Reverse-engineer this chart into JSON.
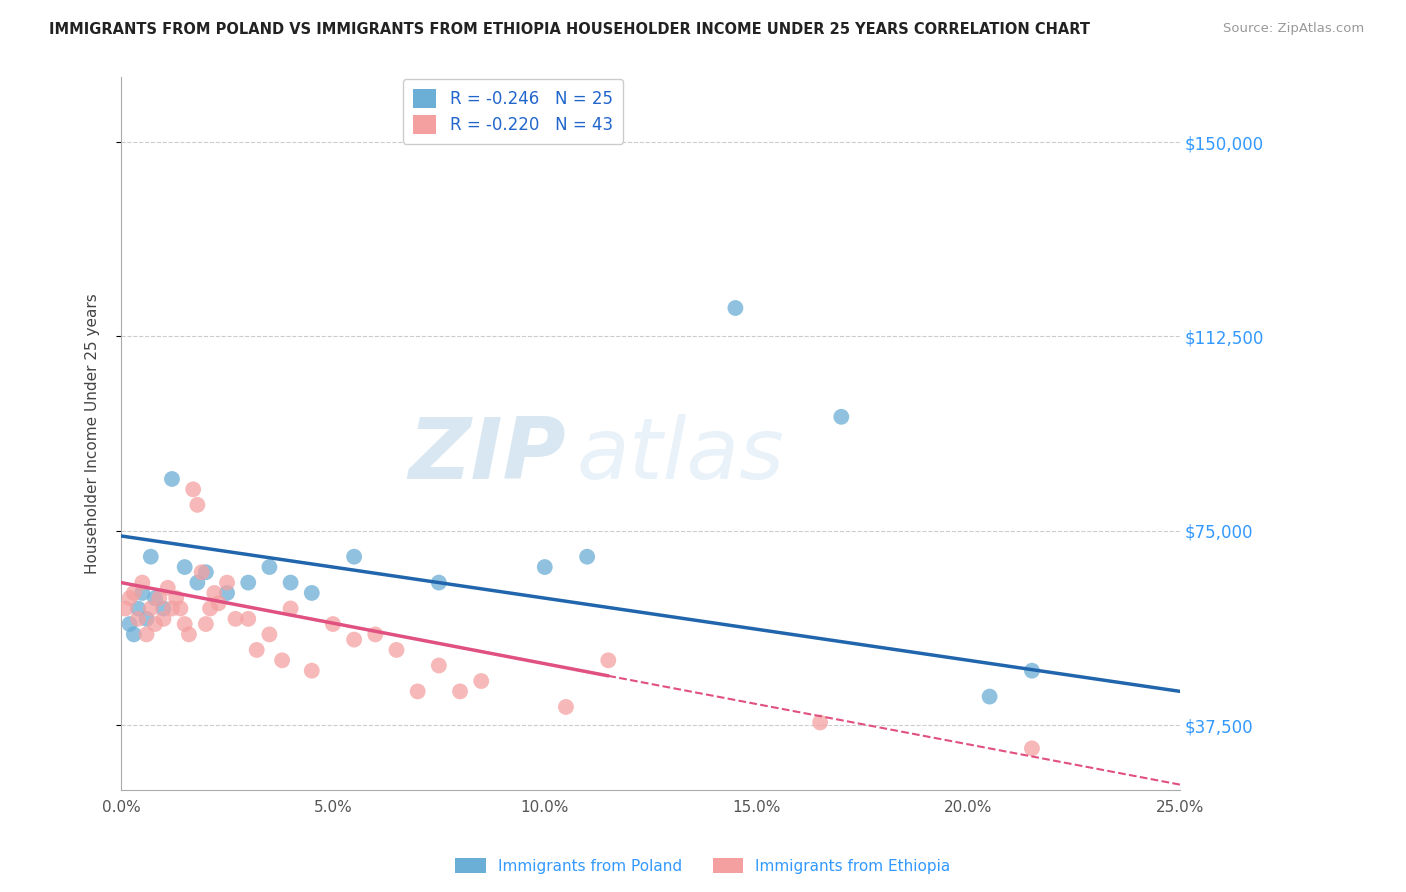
{
  "title": "IMMIGRANTS FROM POLAND VS IMMIGRANTS FROM ETHIOPIA HOUSEHOLDER INCOME UNDER 25 YEARS CORRELATION CHART",
  "source": "Source: ZipAtlas.com",
  "ylabel": "Householder Income Under 25 years",
  "xlim": [
    0.0,
    25.0
  ],
  "ylim": [
    25000,
    162500
  ],
  "yticks": [
    37500,
    75000,
    112500,
    150000
  ],
  "ytick_labels": [
    "$37,500",
    "$75,000",
    "$112,500",
    "$150,000"
  ],
  "xticks": [
    0.0,
    5.0,
    10.0,
    15.0,
    20.0,
    25.0
  ],
  "xtick_labels": [
    "0.0%",
    "5.0%",
    "10.0%",
    "15.0%",
    "20.0%",
    "25.0%"
  ],
  "legend_labels": [
    "R = -0.246   N = 25",
    "R = -0.220   N = 43"
  ],
  "legend_bottom_labels": [
    "Immigrants from Poland",
    "Immigrants from Ethiopia"
  ],
  "poland_color": "#6baed6",
  "ethiopia_color": "#f4a0a0",
  "poland_line_color": "#2166ac",
  "ethiopia_line_color": "#e05080",
  "watermark_zip": "ZIP",
  "watermark_atlas": "atlas",
  "poland_x": [
    0.2,
    0.3,
    0.4,
    0.5,
    0.6,
    0.7,
    0.8,
    1.0,
    1.2,
    1.5,
    1.8,
    2.0,
    2.5,
    3.0,
    3.5,
    4.0,
    4.5,
    5.5,
    7.5,
    10.0,
    11.0,
    14.5,
    17.0,
    20.5,
    21.5
  ],
  "poland_y": [
    57000,
    55000,
    60000,
    63000,
    58000,
    70000,
    62000,
    60000,
    85000,
    68000,
    65000,
    67000,
    63000,
    65000,
    68000,
    65000,
    63000,
    70000,
    65000,
    68000,
    70000,
    118000,
    97000,
    43000,
    48000
  ],
  "ethiopia_x": [
    0.1,
    0.2,
    0.3,
    0.4,
    0.5,
    0.6,
    0.7,
    0.8,
    0.9,
    1.0,
    1.1,
    1.2,
    1.3,
    1.4,
    1.5,
    1.6,
    1.7,
    1.8,
    1.9,
    2.0,
    2.1,
    2.2,
    2.3,
    2.5,
    2.7,
    3.0,
    3.2,
    3.5,
    3.8,
    4.0,
    4.5,
    5.0,
    5.5,
    6.0,
    6.5,
    7.0,
    7.5,
    8.0,
    8.5,
    10.5,
    11.5,
    16.5,
    21.5
  ],
  "ethiopia_y": [
    60000,
    62000,
    63000,
    58000,
    65000,
    55000,
    60000,
    57000,
    62000,
    58000,
    64000,
    60000,
    62000,
    60000,
    57000,
    55000,
    83000,
    80000,
    67000,
    57000,
    60000,
    63000,
    61000,
    65000,
    58000,
    58000,
    52000,
    55000,
    50000,
    60000,
    48000,
    57000,
    54000,
    55000,
    52000,
    44000,
    49000,
    44000,
    46000,
    41000,
    50000,
    38000,
    33000
  ],
  "poland_line_x0": 0.0,
  "poland_line_y0": 74000,
  "poland_line_x1": 25.0,
  "poland_line_y1": 44000,
  "ethiopia_solid_x0": 0.0,
  "ethiopia_solid_y0": 65000,
  "ethiopia_solid_x1": 11.5,
  "ethiopia_solid_y1": 47000,
  "ethiopia_dashed_x0": 11.5,
  "ethiopia_dashed_y0": 47000,
  "ethiopia_dashed_x1": 25.0,
  "ethiopia_dashed_y1": 26000
}
